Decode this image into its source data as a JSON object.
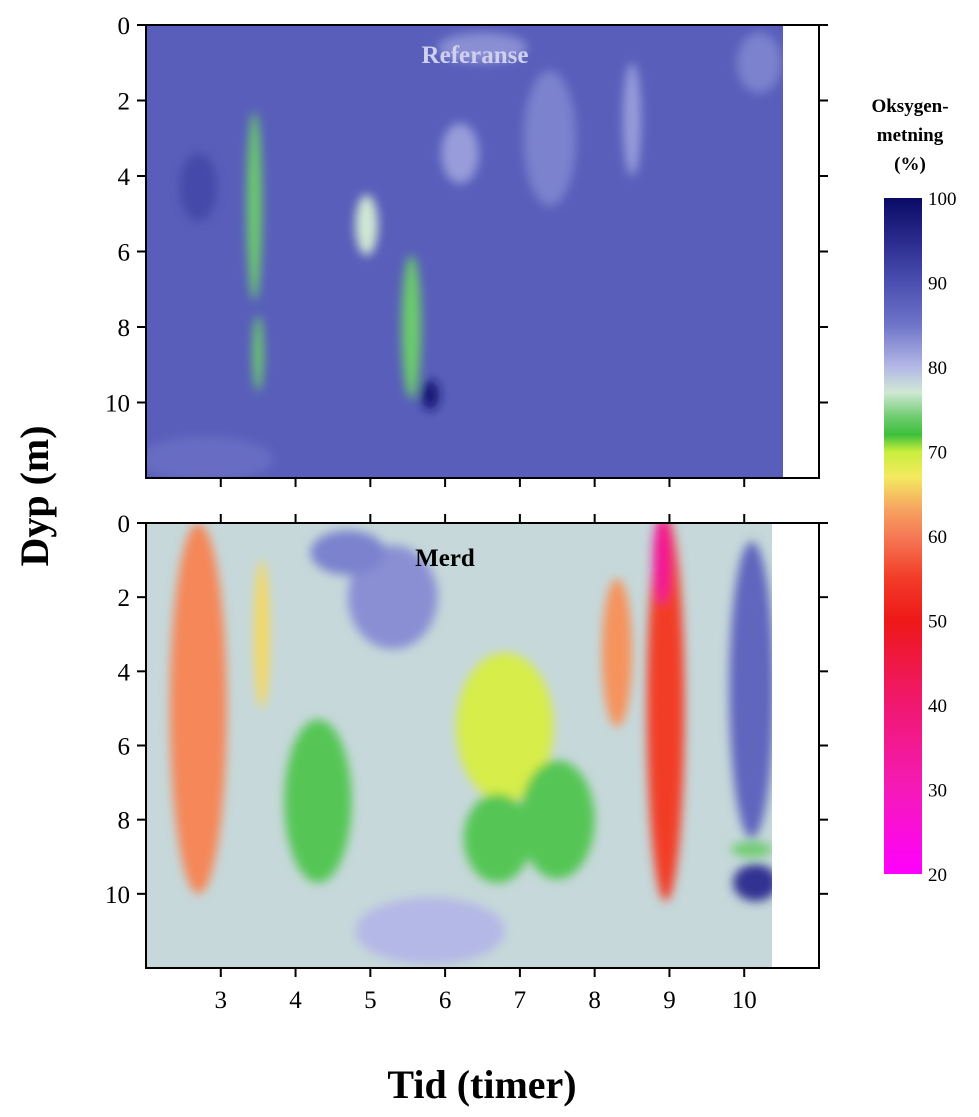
{
  "chart_data": {
    "type": "heatmap",
    "x_axis": {
      "label": "Tid (timer)",
      "ticks": [
        3,
        4,
        5,
        6,
        7,
        8,
        9,
        10
      ],
      "range": [
        2,
        11
      ]
    },
    "y_axis": {
      "label": "Dyp (m)",
      "ticks": [
        0,
        2,
        4,
        6,
        8,
        10
      ],
      "range": [
        0,
        12
      ],
      "reversed": true
    },
    "colorbar": {
      "label_lines": [
        "Oksygen-",
        "metning",
        "(%)"
      ],
      "ticks": [
        100,
        90,
        80,
        70,
        60,
        50,
        40,
        30,
        20
      ],
      "range": [
        20,
        100
      ],
      "colors": [
        {
          "value": 100,
          "color": "#0a0a66"
        },
        {
          "value": 95,
          "color": "#2a2a8c"
        },
        {
          "value": 90,
          "color": "#4a4fb0"
        },
        {
          "value": 85,
          "color": "#6e74c8"
        },
        {
          "value": 80,
          "color": "#b4b8e6"
        },
        {
          "value": 77,
          "color": "#cfe8d4"
        },
        {
          "value": 74,
          "color": "#6ccc6c"
        },
        {
          "value": 72,
          "color": "#3cc03c"
        },
        {
          "value": 70,
          "color": "#c8ee3c"
        },
        {
          "value": 67,
          "color": "#f4ea60"
        },
        {
          "value": 63,
          "color": "#f6a060"
        },
        {
          "value": 60,
          "color": "#f57a55"
        },
        {
          "value": 55,
          "color": "#f23c28"
        },
        {
          "value": 50,
          "color": "#ee1818"
        },
        {
          "value": 40,
          "color": "#f01870"
        },
        {
          "value": 30,
          "color": "#f51ab8"
        },
        {
          "value": 20,
          "color": "#ff00ff"
        }
      ]
    },
    "panels": [
      {
        "title": "Referanse",
        "title_color": "#cfd0ee",
        "x_extent": [
          2,
          10.55
        ],
        "background_value": 88,
        "features": [
          {
            "x": 3.45,
            "y": 4.8,
            "sx": 0.1,
            "sy": 2.5,
            "value": 74
          },
          {
            "x": 3.5,
            "y": 8.7,
            "sx": 0.07,
            "sy": 1.0,
            "value": 74
          },
          {
            "x": 4.95,
            "y": 5.3,
            "sx": 0.15,
            "sy": 0.8,
            "value": 77
          },
          {
            "x": 5.55,
            "y": 8.0,
            "sx": 0.13,
            "sy": 1.9,
            "value": 74
          },
          {
            "x": 6.2,
            "y": 3.4,
            "sx": 0.25,
            "sy": 0.8,
            "value": 82
          },
          {
            "x": 7.4,
            "y": 3.0,
            "sx": 0.35,
            "sy": 1.8,
            "value": 84
          },
          {
            "x": 8.5,
            "y": 1.8,
            "sx": 0.07,
            "sy": 0.3,
            "value": 74
          },
          {
            "x": 8.5,
            "y": 2.5,
            "sx": 0.12,
            "sy": 1.5,
            "value": 82
          },
          {
            "x": 2.7,
            "y": 4.3,
            "sx": 0.25,
            "sy": 0.9,
            "value": 91
          },
          {
            "x": 5.8,
            "y": 9.8,
            "sx": 0.12,
            "sy": 0.4,
            "value": 98
          },
          {
            "x": 2.8,
            "y": 11.5,
            "sx": 0.9,
            "sy": 0.6,
            "value": 86
          },
          {
            "x": 10.2,
            "y": 1.0,
            "sx": 0.3,
            "sy": 0.8,
            "value": 84
          },
          {
            "x": 6.5,
            "y": 0.6,
            "sx": 0.6,
            "sy": 0.4,
            "value": 83
          }
        ]
      },
      {
        "title": "Merd",
        "title_color": "#000000",
        "x_extent": [
          2,
          10.4
        ],
        "background_value": 78,
        "features": [
          {
            "x": 2.7,
            "y": 5.0,
            "sx": 0.38,
            "sy": 5.0,
            "value": 61
          },
          {
            "x": 3.55,
            "y": 3.0,
            "sx": 0.1,
            "sy": 2.0,
            "value": 66
          },
          {
            "x": 4.3,
            "y": 7.5,
            "sx": 0.45,
            "sy": 2.2,
            "value": 73
          },
          {
            "x": 6.8,
            "y": 5.5,
            "sx": 0.65,
            "sy": 2.0,
            "value": 69
          },
          {
            "x": 7.5,
            "y": 8.0,
            "sx": 0.5,
            "sy": 1.6,
            "value": 73
          },
          {
            "x": 6.7,
            "y": 8.5,
            "sx": 0.45,
            "sy": 1.2,
            "value": 73
          },
          {
            "x": 8.3,
            "y": 3.5,
            "sx": 0.2,
            "sy": 2.0,
            "value": 62
          },
          {
            "x": 8.95,
            "y": 5.0,
            "sx": 0.25,
            "sy": 5.2,
            "value": 55
          },
          {
            "x": 8.9,
            "y": 1.0,
            "sx": 0.12,
            "sy": 1.2,
            "value": 35
          },
          {
            "x": 10.1,
            "y": 4.5,
            "sx": 0.3,
            "sy": 4.0,
            "value": 87
          },
          {
            "x": 10.15,
            "y": 9.7,
            "sx": 0.3,
            "sy": 0.5,
            "value": 94
          },
          {
            "x": 10.1,
            "y": 8.8,
            "sx": 0.28,
            "sy": 0.2,
            "value": 74
          },
          {
            "x": 5.3,
            "y": 2.0,
            "sx": 0.6,
            "sy": 1.4,
            "value": 83
          },
          {
            "x": 5.8,
            "y": 11.0,
            "sx": 1.0,
            "sy": 0.9,
            "value": 80
          },
          {
            "x": 4.7,
            "y": 0.8,
            "sx": 0.5,
            "sy": 0.6,
            "value": 84
          }
        ]
      }
    ]
  }
}
